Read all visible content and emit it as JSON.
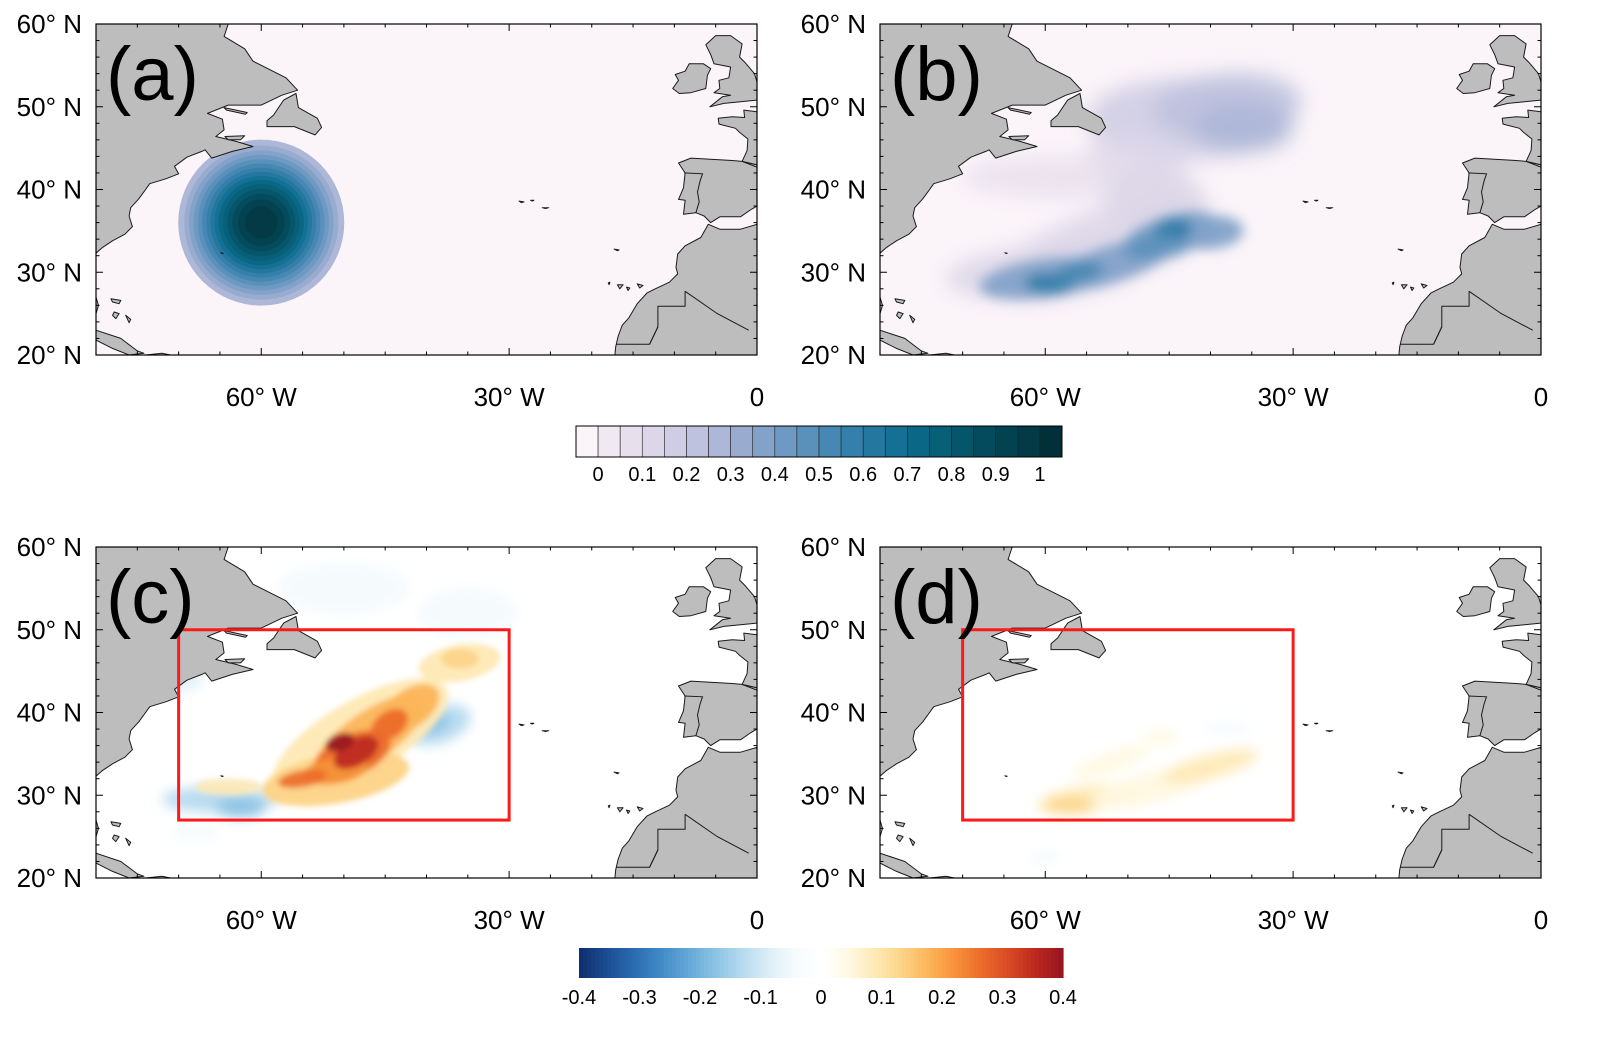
{
  "panels": [
    {
      "label": "(a)",
      "field": "gaussian",
      "lat_labels": [
        "60° N",
        "50° N",
        "40° N",
        "30° N",
        "20° N"
      ],
      "lon_labels": [
        "60° W",
        "30° W",
        "0"
      ]
    },
    {
      "label": "(b)",
      "field": "plume",
      "lat_labels": [
        "60° N",
        "50° N",
        "40° N",
        "30° N",
        "20° N"
      ],
      "lon_labels": [
        "60° W",
        "30° W",
        "0"
      ]
    },
    {
      "label": "(c)",
      "field": "diff_strong",
      "region_box": {
        "lon": [
          -70,
          -30
        ],
        "lat": [
          27,
          50
        ]
      },
      "lat_labels": [
        "60° N",
        "50° N",
        "40° N",
        "30° N",
        "20° N"
      ],
      "lon_labels": [
        "60° W",
        "30° W",
        "0"
      ]
    },
    {
      "label": "(d)",
      "field": "diff_weak",
      "region_box": {
        "lon": [
          -70,
          -30
        ],
        "lat": [
          27,
          50
        ]
      },
      "lat_labels": [
        "60° N",
        "50° N",
        "40° N",
        "30° N",
        "20° N"
      ],
      "lon_labels": [
        "60° W",
        "30° W",
        "0"
      ]
    }
  ],
  "map_extent": {
    "lon": [
      -80,
      0
    ],
    "lat": [
      20,
      60
    ]
  },
  "colorbar_top": {
    "min": 0,
    "max": 1,
    "levels": 22,
    "tick_labels": [
      "0",
      "0.1",
      "0.2",
      "0.3",
      "0.4",
      "0.5",
      "0.6",
      "0.7",
      "0.8",
      "0.9",
      "1"
    ],
    "colors": [
      "#fbf4f9",
      "#f1e9f2",
      "#e7dfec",
      "#dcd6e8",
      "#cfcde4",
      "#bfc2de",
      "#adb7d7",
      "#99acd0",
      "#83a2c9",
      "#6e99c2",
      "#5a91bb",
      "#4688b3",
      "#3580aa",
      "#2478a0",
      "#147094",
      "#0a6886",
      "#075f78",
      "#05566a",
      "#044c5d",
      "#034351",
      "#033a45",
      "#02303a"
    ]
  },
  "colorbar_bottom": {
    "min": -0.4,
    "max": 0.4,
    "tick_labels": [
      "-0.4",
      "-0.3",
      "-0.2",
      "-0.1",
      "0",
      "0.1",
      "0.2",
      "0.3",
      "0.4"
    ],
    "neg_colors": [
      "#0f2f70",
      "#1c4e94",
      "#2b6cb0",
      "#418ac6",
      "#62a6d6",
      "#88c1e3",
      "#b2d8ee",
      "#d9ecf6",
      "#f4fafd",
      "#ffffff"
    ],
    "pos_colors": [
      "#ffffff",
      "#fff8e0",
      "#fee9b4",
      "#fdd387",
      "#fcb55a",
      "#f7913a",
      "#ec6c2a",
      "#d94a24",
      "#be2a20",
      "#991620"
    ]
  },
  "colors": {
    "land": "#bdbdbd",
    "coast": "#1a1a1a",
    "box": "#ff1a1a",
    "axis": "#000000"
  }
}
